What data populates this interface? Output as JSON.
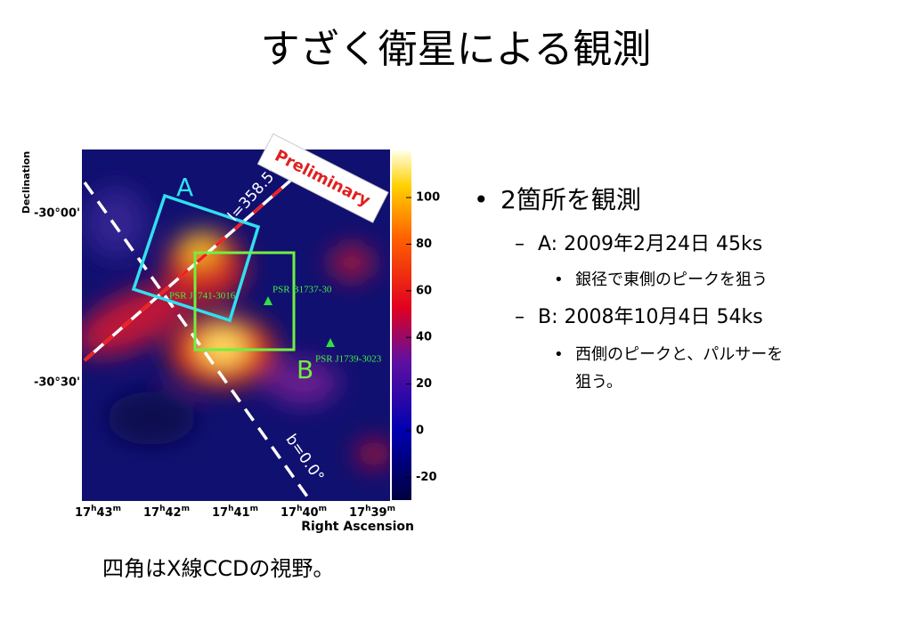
{
  "title": "すざく衛星による観測",
  "figure": {
    "y_axis_label": "Declination",
    "y_ticks": [
      "-30°00'",
      "-30°30'"
    ],
    "x_axis_label": "Right Ascension",
    "hour_unit": "h",
    "minute_unit": "m",
    "x_ticks": [
      {
        "hour": "17",
        "minute": "43"
      },
      {
        "hour": "17",
        "minute": "42"
      },
      {
        "hour": "17",
        "minute": "41"
      },
      {
        "hour": "17",
        "minute": "40"
      },
      {
        "hour": "17",
        "minute": "39"
      }
    ],
    "colorbar_ticks": [
      100,
      80,
      60,
      40,
      20,
      0,
      -20
    ],
    "stamp": "Preliminary",
    "box_a": "A",
    "box_b": "B",
    "l_line": "l=358.5°",
    "b_line": "b=0.0°",
    "sources": [
      "PSR J1741-3016",
      "PSR B1737-30",
      "PSR J1739-3023"
    ]
  },
  "bullets": {
    "main": "2箇所を観測",
    "a": "A: 2009年2月24日 45ks",
    "a_note": "銀径で東側のピークを狙う",
    "b": "B: 2008年10月4日 54ks",
    "b_note_1": "西側のピークと、パルサーを",
    "b_note_2": "狙う。"
  },
  "caption": "四角はX線CCDの視野。"
}
